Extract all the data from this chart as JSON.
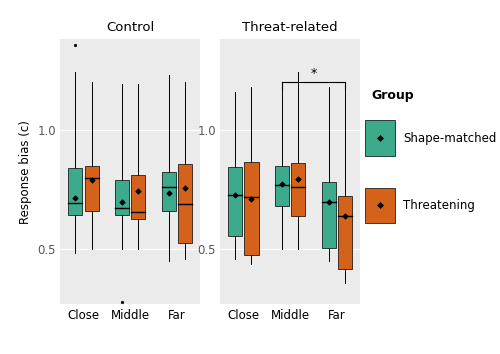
{
  "panels": [
    "Control",
    "Threat-related"
  ],
  "eccentricities": [
    "Close",
    "Middle",
    "Far"
  ],
  "colors": {
    "shape_matched": "#3daa8c",
    "threatening": "#d4621a"
  },
  "ylabel": "Response bias (c)",
  "ylim": [
    0.27,
    1.38
  ],
  "yticks": [
    0.5,
    1.0
  ],
  "ytick_labels": [
    "0.5",
    "1.0"
  ],
  "background_color": "#ebebeb",
  "grid_color": "#ffffff",
  "legend_title": "Group",
  "legend_labels": [
    "Shape-matched",
    "Threatening"
  ],
  "boxplot_data": {
    "control": {
      "shape_matched": {
        "Close": {
          "q1": 0.645,
          "median": 0.695,
          "q3": 0.84,
          "whislo": 0.485,
          "whishi": 1.24,
          "mean": 0.715,
          "fliers_low": [],
          "fliers_high": [
            1.355
          ]
        },
        "Middle": {
          "q1": 0.645,
          "median": 0.672,
          "q3": 0.79,
          "whislo": 0.5,
          "whishi": 1.19,
          "mean": 0.7,
          "fliers_low": [
            0.28
          ],
          "fliers_high": []
        },
        "Far": {
          "q1": 0.66,
          "median": 0.76,
          "q3": 0.825,
          "whislo": 0.45,
          "whishi": 1.23,
          "mean": 0.735,
          "fliers_low": [],
          "fliers_high": []
        }
      },
      "threatening": {
        "Close": {
          "q1": 0.66,
          "median": 0.8,
          "q3": 0.848,
          "whislo": 0.5,
          "whishi": 1.2,
          "mean": 0.79,
          "fliers_low": [],
          "fliers_high": []
        },
        "Middle": {
          "q1": 0.628,
          "median": 0.658,
          "q3": 0.812,
          "whislo": 0.5,
          "whishi": 1.19,
          "mean": 0.745,
          "fliers_low": [],
          "fliers_high": []
        },
        "Far": {
          "q1": 0.528,
          "median": 0.69,
          "q3": 0.858,
          "whislo": 0.46,
          "whishi": 1.2,
          "mean": 0.755,
          "fliers_low": [],
          "fliers_high": []
        }
      }
    },
    "threat_related": {
      "shape_matched": {
        "Close": {
          "q1": 0.555,
          "median": 0.728,
          "q3": 0.845,
          "whislo": 0.46,
          "whishi": 1.16,
          "mean": 0.728,
          "fliers_low": [],
          "fliers_high": []
        },
        "Middle": {
          "q1": 0.68,
          "median": 0.77,
          "q3": 0.848,
          "whislo": 0.5,
          "whishi": 1.2,
          "mean": 0.775,
          "fliers_low": [],
          "fliers_high": []
        },
        "Far": {
          "q1": 0.508,
          "median": 0.7,
          "q3": 0.782,
          "whislo": 0.45,
          "whishi": 1.18,
          "mean": 0.7,
          "fliers_low": [],
          "fliers_high": []
        }
      },
      "threatening": {
        "Close": {
          "q1": 0.478,
          "median": 0.72,
          "q3": 0.865,
          "whislo": 0.44,
          "whishi": 1.18,
          "mean": 0.712,
          "fliers_low": [],
          "fliers_high": []
        },
        "Middle": {
          "q1": 0.638,
          "median": 0.76,
          "q3": 0.862,
          "whislo": 0.5,
          "whishi": 1.24,
          "mean": 0.795,
          "fliers_low": [],
          "fliers_high": []
        },
        "Far": {
          "q1": 0.418,
          "median": 0.638,
          "q3": 0.722,
          "whislo": 0.36,
          "whishi": 1.18,
          "mean": 0.638,
          "fliers_low": [],
          "fliers_high": []
        }
      }
    }
  },
  "significance_bracket": {
    "panel": 1,
    "x1_group": "Middle",
    "x2_group": "Far",
    "y": 1.2,
    "label": "*"
  }
}
